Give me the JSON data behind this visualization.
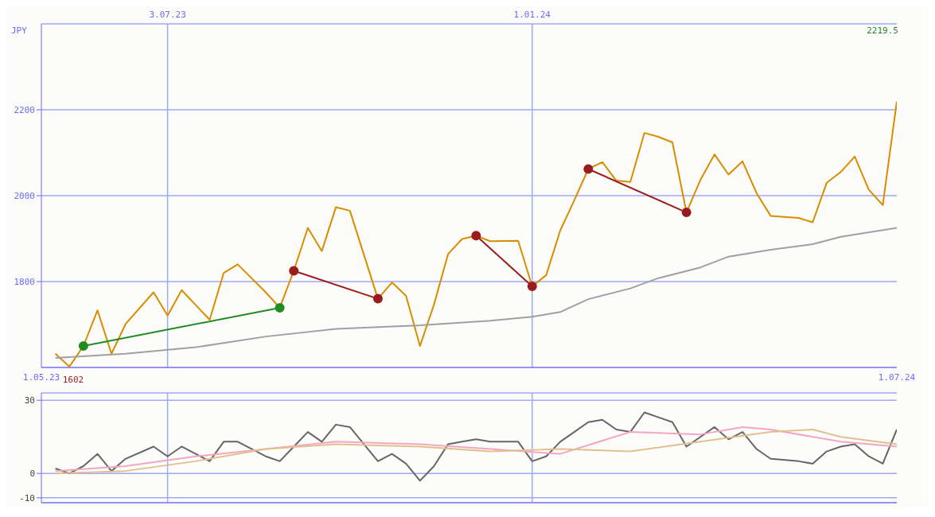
{
  "chart_data": [
    {
      "type": "line",
      "xlim": [
        "2023-05-01",
        "2024-07-01"
      ],
      "ylim": [
        1600,
        2400
      ],
      "yticks": [
        1800,
        2000,
        2200
      ],
      "xticks": [
        {
          "value": "2023-05-01",
          "label": "1.05.23"
        },
        {
          "value": "2024-07-01",
          "label": "1.07.24"
        }
      ],
      "x2lim": [
        "2023-05-01",
        "2024-07-01"
      ],
      "x2ticks": [
        {
          "value": "2023-07-03",
          "label": "3.07.23"
        },
        {
          "value": "2024-01-01",
          "label": "1.01.24"
        }
      ],
      "grid": true,
      "marker": "none",
      "line_style": "solid",
      "annotations": [
        "JPY",
        "2219.5",
        {
          "text": "1602",
          "x": "2023-05-15",
          "y": 1602
        }
      ],
      "series": [
        {
          "color": "#d98c00",
          "x": [
            "2023-05-08",
            "2023-05-15",
            "2023-05-22",
            "2023-05-29",
            "2023-06-05",
            "2023-06-12",
            "2023-06-26",
            "2023-07-03",
            "2023-07-10",
            "2023-07-24",
            "2023-07-31",
            "2023-08-07",
            "2023-08-21",
            "2023-08-28",
            "2023-09-04",
            "2023-09-11",
            "2023-09-18",
            "2023-09-25",
            "2023-10-02",
            "2023-10-16",
            "2023-10-23",
            "2023-10-30",
            "2023-11-06",
            "2023-11-13",
            "2023-11-20",
            "2023-11-27",
            "2023-12-04",
            "2023-12-11",
            "2023-12-25",
            "2024-01-01",
            "2024-01-08",
            "2024-01-15",
            "2024-01-22",
            "2024-01-29",
            "2024-02-05",
            "2024-02-12",
            "2024-02-19",
            "2024-02-26",
            "2024-03-04",
            "2024-03-11",
            "2024-03-18",
            "2024-03-25",
            "2024-04-01",
            "2024-04-08",
            "2024-04-15",
            "2024-04-22",
            "2024-04-29",
            "2024-05-13",
            "2024-05-20",
            "2024-05-27",
            "2024-06-03",
            "2024-06-10",
            "2024-06-17",
            "2024-06-24",
            "2024-07-01"
          ],
          "values": [
            1632,
            1602,
            1650,
            1733,
            1632,
            1701,
            1775,
            1721,
            1780,
            1711,
            1820,
            1840,
            1775,
            1739,
            1825,
            1925,
            1871,
            1973,
            1965,
            1760,
            1798,
            1767,
            1650,
            1747,
            1864,
            1899,
            1907,
            1894,
            1895,
            1789,
            1815,
            1919,
            1989,
            2062,
            2078,
            2035,
            2032,
            2146,
            2137,
            2124,
            1961,
            2037,
            2096,
            2049,
            2080,
            2006,
            1953,
            1948,
            1938,
            2030,
            2055,
            2091,
            2014,
            1978,
            2219.5
          ]
        },
        {
          "color": "#a0a0a0",
          "x": [
            "2023-05-08",
            "2023-06-12",
            "2023-07-17",
            "2023-08-21",
            "2023-09-25",
            "2023-11-06",
            "2023-12-11",
            "2024-01-01",
            "2024-01-15",
            "2024-01-29",
            "2024-02-19",
            "2024-03-04",
            "2024-03-25",
            "2024-04-08",
            "2024-04-29",
            "2024-05-20",
            "2024-06-03",
            "2024-07-01"
          ],
          "values": [
            1622,
            1632,
            1647,
            1672,
            1690,
            1698,
            1709,
            1718,
            1729,
            1759,
            1784,
            1808,
            1833,
            1858,
            1874,
            1887,
            1904,
            1925
          ]
        },
        {
          "color": "#228b22",
          "marker": "circle",
          "x": [
            "2023-05-22",
            "2023-08-28"
          ],
          "values": [
            1650,
            1739
          ]
        },
        {
          "color": "#9b1c1c",
          "marker": "circle",
          "x": [
            "2023-09-04",
            "2023-10-16"
          ],
          "values": [
            1825,
            1760
          ]
        },
        {
          "color": "#9b1c1c",
          "marker": "circle",
          "x": [
            "2023-12-04",
            "2024-01-01"
          ],
          "values": [
            1907,
            1789
          ]
        },
        {
          "color": "#9b1c1c",
          "marker": "circle",
          "x": [
            "2024-01-29",
            "2024-03-18"
          ],
          "values": [
            2062,
            1961
          ]
        }
      ]
    },
    {
      "type": "line",
      "xlim": [
        "2023-05-01",
        "2024-07-01"
      ],
      "ylim": [
        -12,
        33
      ],
      "yticks": [
        -10,
        0,
        30
      ],
      "xticks": [
        {
          "value": "2023-07-03",
          "label": null
        },
        {
          "value": "2024-01-01",
          "label": null
        }
      ],
      "tick_labels": "y",
      "grid": true,
      "marker": "none",
      "line_style": "solid",
      "series": [
        {
          "color": "#666666",
          "x": [
            "2023-05-08",
            "2023-05-15",
            "2023-05-22",
            "2023-05-29",
            "2023-06-05",
            "2023-06-12",
            "2023-06-26",
            "2023-07-03",
            "2023-07-10",
            "2023-07-24",
            "2023-07-31",
            "2023-08-07",
            "2023-08-21",
            "2023-08-28",
            "2023-09-04",
            "2023-09-11",
            "2023-09-18",
            "2023-09-25",
            "2023-10-02",
            "2023-10-16",
            "2023-10-23",
            "2023-10-30",
            "2023-11-06",
            "2023-11-13",
            "2023-11-20",
            "2023-11-27",
            "2023-12-04",
            "2023-12-11",
            "2023-12-25",
            "2024-01-01",
            "2024-01-08",
            "2024-01-15",
            "2024-01-22",
            "2024-01-29",
            "2024-02-05",
            "2024-02-12",
            "2024-02-19",
            "2024-02-26",
            "2024-03-04",
            "2024-03-11",
            "2024-03-18",
            "2024-03-25",
            "2024-04-01",
            "2024-04-08",
            "2024-04-15",
            "2024-04-22",
            "2024-04-29",
            "2024-05-13",
            "2024-05-20",
            "2024-05-27",
            "2024-06-03",
            "2024-06-10",
            "2024-06-17",
            "2024-06-24",
            "2024-07-01"
          ],
          "values": [
            2,
            0,
            3,
            8,
            1,
            6,
            11,
            7,
            11,
            5,
            13,
            13,
            7,
            5,
            11,
            17,
            13,
            20,
            19,
            5,
            8,
            4,
            -3,
            3,
            12,
            13,
            14,
            13,
            13,
            5,
            7,
            13,
            17,
            21,
            22,
            18,
            17,
            25,
            23,
            21,
            11,
            15,
            19,
            14,
            17,
            10,
            6,
            5,
            4,
            9,
            11,
            12,
            7,
            4,
            18
          ]
        },
        {
          "color": "#f4a6c0",
          "x": [
            "2023-05-08",
            "2023-06-12",
            "2023-07-17",
            "2023-08-21",
            "2023-09-25",
            "2023-11-06",
            "2023-12-11",
            "2024-01-15",
            "2024-02-19",
            "2024-03-25",
            "2024-04-15",
            "2024-04-29",
            "2024-06-03",
            "2024-07-01"
          ],
          "values": [
            1,
            3,
            7,
            10,
            13,
            12,
            10,
            8,
            17,
            16,
            19,
            18,
            13,
            11
          ]
        },
        {
          "color": "#e0c090",
          "x": [
            "2023-05-08",
            "2023-06-12",
            "2023-07-17",
            "2023-08-21",
            "2023-09-25",
            "2023-11-06",
            "2023-12-11",
            "2024-01-15",
            "2024-02-19",
            "2024-03-25",
            "2024-04-29",
            "2024-05-20",
            "2024-06-03",
            "2024-07-01"
          ],
          "values": [
            0,
            1,
            5,
            10,
            12,
            11,
            9,
            10,
            9,
            13,
            17,
            18,
            15,
            12
          ]
        }
      ]
    }
  ]
}
